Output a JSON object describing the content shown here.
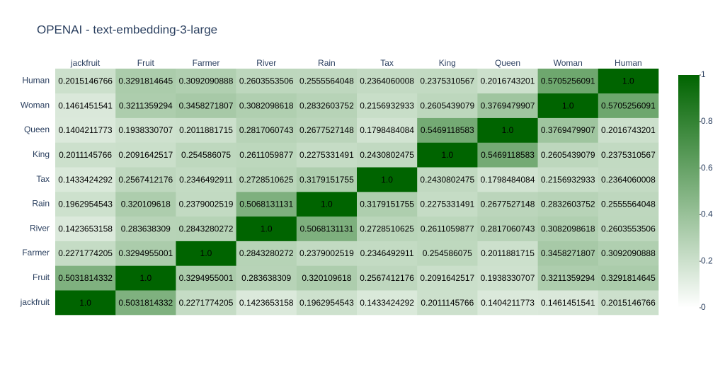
{
  "chart_data": {
    "type": "heatmap",
    "title": "OPENAI - text-embedding-3-large",
    "x": [
      "jackfruit",
      "Fruit",
      "Farmer",
      "River",
      "Rain",
      "Tax",
      "King",
      "Queen",
      "Woman",
      "Human"
    ],
    "y": [
      "jackfruit",
      "Fruit",
      "Farmer",
      "River",
      "Rain",
      "Tax",
      "King",
      "Queen",
      "Woman",
      "Human"
    ],
    "values": [
      [
        1,
        0.5031814332,
        0.2271774205,
        0.1423653158,
        0.1962954543,
        0.1433424292,
        0.2011145766,
        0.1404211773,
        0.1461451541,
        0.2015146766
      ],
      [
        0.5031814332,
        1,
        0.3294955001,
        0.283638309,
        0.320109618,
        0.2567412176,
        0.2091642517,
        0.1938330707,
        0.3211359294,
        0.3291814645
      ],
      [
        0.2271774205,
        0.3294955001,
        1,
        0.2843280272,
        0.2379002519,
        0.2346492911,
        0.254586075,
        0.2011881715,
        0.3458271807,
        0.3092090888
      ],
      [
        0.1423653158,
        0.283638309,
        0.2843280272,
        1,
        0.5068131131,
        0.2728510625,
        0.2611059877,
        0.2817060743,
        0.3082098618,
        0.2603553506
      ],
      [
        0.1962954543,
        0.320109618,
        0.2379002519,
        0.5068131131,
        1,
        0.3179151755,
        0.2275331491,
        0.2677527148,
        0.2832603752,
        0.2555564048
      ],
      [
        0.1433424292,
        0.2567412176,
        0.2346492911,
        0.2728510625,
        0.3179151755,
        1,
        0.2430802475,
        0.1798484084,
        0.2156932933,
        0.2364060008
      ],
      [
        0.2011145766,
        0.2091642517,
        0.254586075,
        0.2611059877,
        0.2275331491,
        0.2430802475,
        1,
        0.5469118583,
        0.2605439079,
        0.2375310567
      ],
      [
        0.1404211773,
        0.1938330707,
        0.2011881715,
        0.2817060743,
        0.2677527148,
        0.1798484084,
        0.5469118583,
        1,
        0.3769479907,
        0.2016743201
      ],
      [
        0.1461451541,
        0.3211359294,
        0.3458271807,
        0.3082098618,
        0.2832603752,
        0.2156932933,
        0.2605439079,
        0.3769479907,
        1,
        0.5705256091
      ],
      [
        0.2015146766,
        0.3291814645,
        0.3092090888,
        0.2603553506,
        0.2555564048,
        0.2364060008,
        0.2375310567,
        0.2016743201,
        0.5705256091,
        1
      ]
    ],
    "value_labels": [
      [
        "1.0",
        "0.5031814332",
        "0.2271774205",
        "0.1423653158",
        "0.1962954543",
        "0.1433424292",
        "0.2011145766",
        "0.1404211773",
        "0.1461451541",
        "0.2015146766"
      ],
      [
        "0.5031814332",
        "1.0",
        "0.3294955001",
        "0.283638309",
        "0.320109618",
        "0.2567412176",
        "0.2091642517",
        "0.1938330707",
        "0.3211359294",
        "0.3291814645"
      ],
      [
        "0.2271774205",
        "0.3294955001",
        "1.0",
        "0.2843280272",
        "0.2379002519",
        "0.2346492911",
        "0.254586075",
        "0.2011881715",
        "0.3458271807",
        "0.3092090888"
      ],
      [
        "0.1423653158",
        "0.283638309",
        "0.2843280272",
        "1.0",
        "0.5068131131",
        "0.2728510625",
        "0.2611059877",
        "0.2817060743",
        "0.3082098618",
        "0.2603553506"
      ],
      [
        "0.1962954543",
        "0.320109618",
        "0.2379002519",
        "0.5068131131",
        "1.0",
        "0.3179151755",
        "0.2275331491",
        "0.2677527148",
        "0.2832603752",
        "0.2555564048"
      ],
      [
        "0.1433424292",
        "0.2567412176",
        "0.2346492911",
        "0.2728510625",
        "0.3179151755",
        "1.0",
        "0.2430802475",
        "0.1798484084",
        "0.2156932933",
        "0.2364060008"
      ],
      [
        "0.2011145766",
        "0.2091642517",
        "0.254586075",
        "0.2611059877",
        "0.2275331491",
        "0.2430802475",
        "1.0",
        "0.5469118583",
        "0.2605439079",
        "0.2375310567"
      ],
      [
        "0.1404211773",
        "0.1938330707",
        "0.2011881715",
        "0.2817060743",
        "0.2677527148",
        "0.1798484084",
        "0.5469118583",
        "1.0",
        "0.3769479907",
        "0.2016743201"
      ],
      [
        "0.1461451541",
        "0.3211359294",
        "0.3458271807",
        "0.3082098618",
        "0.2832603752",
        "0.2156932933",
        "0.2605439079",
        "0.3769479907",
        "1.0",
        "0.5705256091"
      ],
      [
        "0.2015146766",
        "0.3291814645",
        "0.3092090888",
        "0.2603553506",
        "0.2555564048",
        "0.2364060008",
        "0.2375310567",
        "0.2016743201",
        "0.5705256091",
        "1.0"
      ]
    ],
    "colorscale": [
      "#ffffff",
      "#006400"
    ],
    "zlim": [
      0,
      1
    ],
    "colorbar_ticks": [
      0,
      0.2,
      0.4,
      0.6,
      0.8,
      {
        "value": 1,
        "label": "1"
      }
    ]
  }
}
